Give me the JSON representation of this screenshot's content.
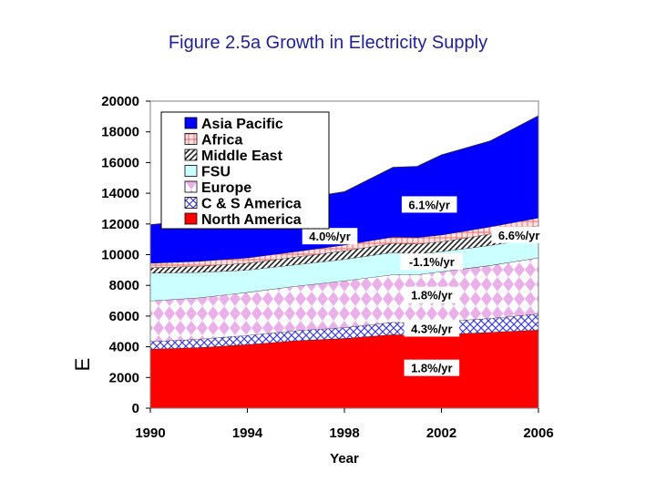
{
  "chart_data": {
    "type": "area",
    "title": "Figure 2.5a Growth in Electricity Supply",
    "xlabel": "Year",
    "ylabel": "E",
    "xlim": [
      1990,
      2006
    ],
    "ylim": [
      0,
      20000
    ],
    "x_ticks": [
      "1990",
      "1994",
      "1998",
      "2002",
      "2006"
    ],
    "y_ticks": [
      "0",
      "2000",
      "4000",
      "6000",
      "8000",
      "10000",
      "12000",
      "14000",
      "16000",
      "18000",
      "20000"
    ],
    "x": [
      1990,
      1992,
      1994,
      1996,
      1998,
      2000,
      2001,
      2002,
      2004,
      2006
    ],
    "stacking": "cumulative",
    "series": [
      {
        "name": "North America",
        "color": "#ff0000",
        "pattern": "solid",
        "values": [
          3850,
          3950,
          4150,
          4400,
          4550,
          4800,
          4750,
          4800,
          4950,
          5100
        ],
        "growth": "1.8%/yr"
      },
      {
        "name": "C & S America",
        "color": "#c8c8ff",
        "pattern": "crosshatch",
        "values": [
          500,
          550,
          600,
          650,
          700,
          800,
          800,
          850,
          900,
          1050
        ],
        "growth": "4.3%/yr"
      },
      {
        "name": "Europe",
        "color": "#f2b8f2",
        "pattern": "diamonds",
        "values": [
          2650,
          2700,
          2800,
          2900,
          3050,
          3100,
          3150,
          3250,
          3450,
          3650
        ],
        "growth": "1.8%/yr"
      },
      {
        "name": "FSU",
        "color": "#ccffff",
        "pattern": "solid",
        "values": [
          1800,
          1650,
          1450,
          1400,
          1400,
          1450,
          1350,
          1300,
          1300,
          1300
        ],
        "growth": "-1.1%/yr"
      },
      {
        "name": "Middle East",
        "color": "#b8a0d8",
        "pattern": "diagonal",
        "values": [
          350,
          400,
          450,
          500,
          550,
          600,
          650,
          650,
          750,
          800
        ],
        "growth": "6.6%/yr"
      },
      {
        "name": "Africa",
        "color": "#ffd0d0",
        "pattern": "grid",
        "values": [
          300,
          320,
          340,
          350,
          380,
          400,
          420,
          430,
          460,
          500
        ],
        "growth": "4.0%/yr"
      },
      {
        "name": "Asia Pacific",
        "color": "#0000ff",
        "pattern": "solid",
        "values": [
          2500,
          2700,
          3050,
          3400,
          3470,
          4540,
          4630,
          5220,
          5590,
          6650
        ],
        "growth": "6.1%/yr"
      }
    ],
    "legend_order": [
      "Asia Pacific",
      "Africa",
      "Middle East",
      "FSU",
      "Europe",
      "C & S America",
      "North America"
    ],
    "legend_position": "top-left",
    "annotations": [
      {
        "text": "6.1%/yr",
        "series": "Asia Pacific"
      },
      {
        "text": "4.0%/yr",
        "series": "Africa"
      },
      {
        "text": "6.6%/yr",
        "series": "Middle East"
      },
      {
        "text": "-1.1%/yr",
        "series": "FSU"
      },
      {
        "text": "1.8%/yr",
        "series": "Europe"
      },
      {
        "text": "4.3%/yr",
        "series": "C & S America"
      },
      {
        "text": "1.8%/yr",
        "series": "North America"
      }
    ]
  }
}
